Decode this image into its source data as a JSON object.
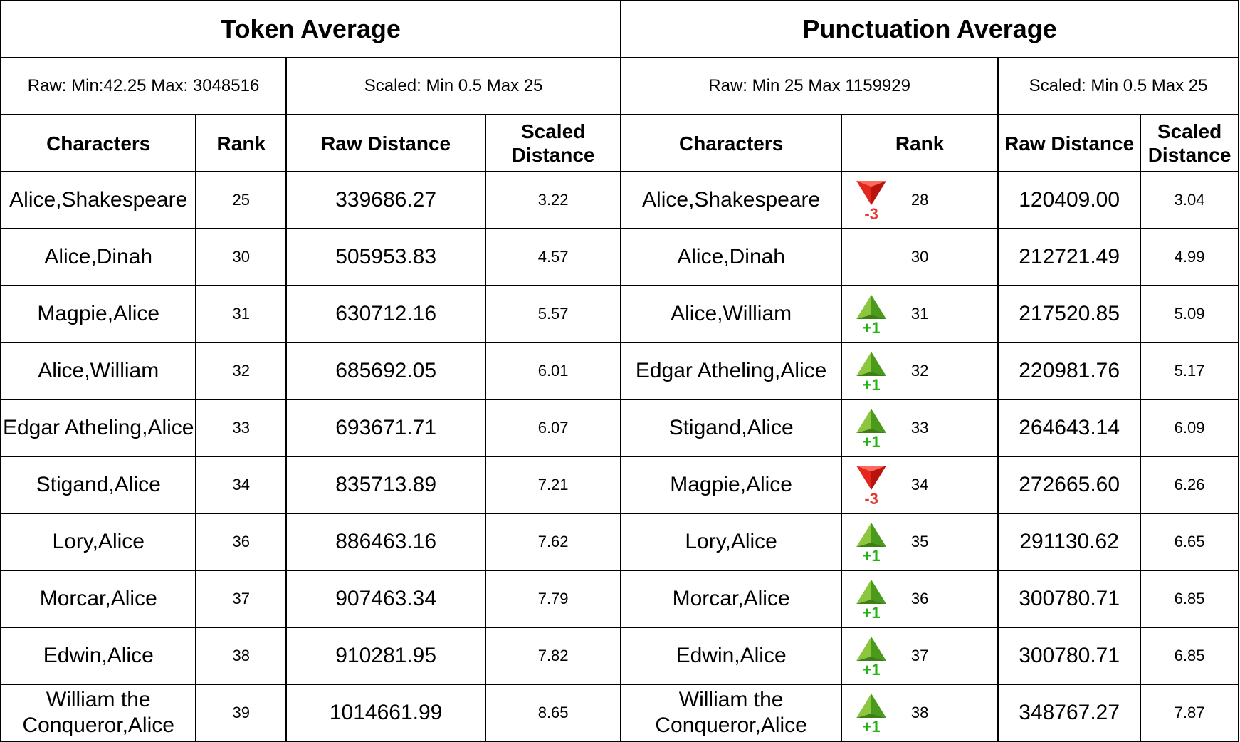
{
  "token": {
    "title": "Token Average",
    "raw_range": "Raw: Min:42.25 Max: 3048516",
    "scaled_range": "Scaled: Min 0.5 Max 25",
    "headers": {
      "characters": "Characters",
      "rank": "Rank",
      "raw": "Raw Distance",
      "scaled": "Scaled Distance"
    },
    "rows": [
      {
        "characters": "Alice,Shakespeare",
        "rank": "25",
        "raw": "339686.27",
        "scaled": "3.22"
      },
      {
        "characters": "Alice,Dinah",
        "rank": "30",
        "raw": "505953.83",
        "scaled": "4.57"
      },
      {
        "characters": "Magpie,Alice",
        "rank": "31",
        "raw": "630712.16",
        "scaled": "5.57"
      },
      {
        "characters": "Alice,William",
        "rank": "32",
        "raw": "685692.05",
        "scaled": "6.01"
      },
      {
        "characters": "Edgar Atheling,Alice",
        "rank": "33",
        "raw": "693671.71",
        "scaled": "6.07"
      },
      {
        "characters": "Stigand,Alice",
        "rank": "34",
        "raw": "835713.89",
        "scaled": "7.21"
      },
      {
        "characters": "Lory,Alice",
        "rank": "36",
        "raw": "886463.16",
        "scaled": "7.62"
      },
      {
        "characters": "Morcar,Alice",
        "rank": "37",
        "raw": "907463.34",
        "scaled": "7.79"
      },
      {
        "characters": "Edwin,Alice",
        "rank": "38",
        "raw": "910281.95",
        "scaled": "7.82"
      },
      {
        "characters": "William the Conqueror,Alice",
        "rank": "39",
        "raw": "1014661.99",
        "scaled": "8.65"
      }
    ]
  },
  "punctuation": {
    "title": "Punctuation Average",
    "raw_range": "Raw: Min 25 Max 1159929",
    "scaled_range": "Scaled: Min 0.5 Max 25",
    "headers": {
      "characters": "Characters",
      "rank": "Rank",
      "raw": "Raw Distance",
      "scaled": "Scaled Distance"
    },
    "rows": [
      {
        "characters": "Alice,Shakespeare",
        "rank": "28",
        "change": "-3",
        "direction": "down",
        "raw": "120409.00",
        "scaled": "3.04"
      },
      {
        "characters": "Alice,Dinah",
        "rank": "30",
        "change": "",
        "direction": "none",
        "raw": "212721.49",
        "scaled": "4.99"
      },
      {
        "characters": "Alice,William",
        "rank": "31",
        "change": "+1",
        "direction": "up",
        "raw": "217520.85",
        "scaled": "5.09"
      },
      {
        "characters": "Edgar Atheling,Alice",
        "rank": "32",
        "change": "+1",
        "direction": "up",
        "raw": "220981.76",
        "scaled": "5.17"
      },
      {
        "characters": "Stigand,Alice",
        "rank": "33",
        "change": "+1",
        "direction": "up",
        "raw": "264643.14",
        "scaled": "6.09"
      },
      {
        "characters": "Magpie,Alice",
        "rank": "34",
        "change": "-3",
        "direction": "down",
        "raw": "272665.60",
        "scaled": "6.26"
      },
      {
        "characters": "Lory,Alice",
        "rank": "35",
        "change": "+1",
        "direction": "up",
        "raw": "291130.62",
        "scaled": "6.65"
      },
      {
        "characters": "Morcar,Alice",
        "rank": "36",
        "change": "+1",
        "direction": "up",
        "raw": "300780.71",
        "scaled": "6.85"
      },
      {
        "characters": "Edwin,Alice",
        "rank": "37",
        "change": "+1",
        "direction": "up",
        "raw": "300780.71",
        "scaled": "6.85"
      },
      {
        "characters": "William the Conqueror,Alice",
        "rank": "38",
        "change": "+1",
        "direction": "up",
        "raw": "348767.27",
        "scaled": "7.87"
      }
    ]
  },
  "colors": {
    "up": "#22b316",
    "down": "#e53a32",
    "border": "#000000"
  }
}
